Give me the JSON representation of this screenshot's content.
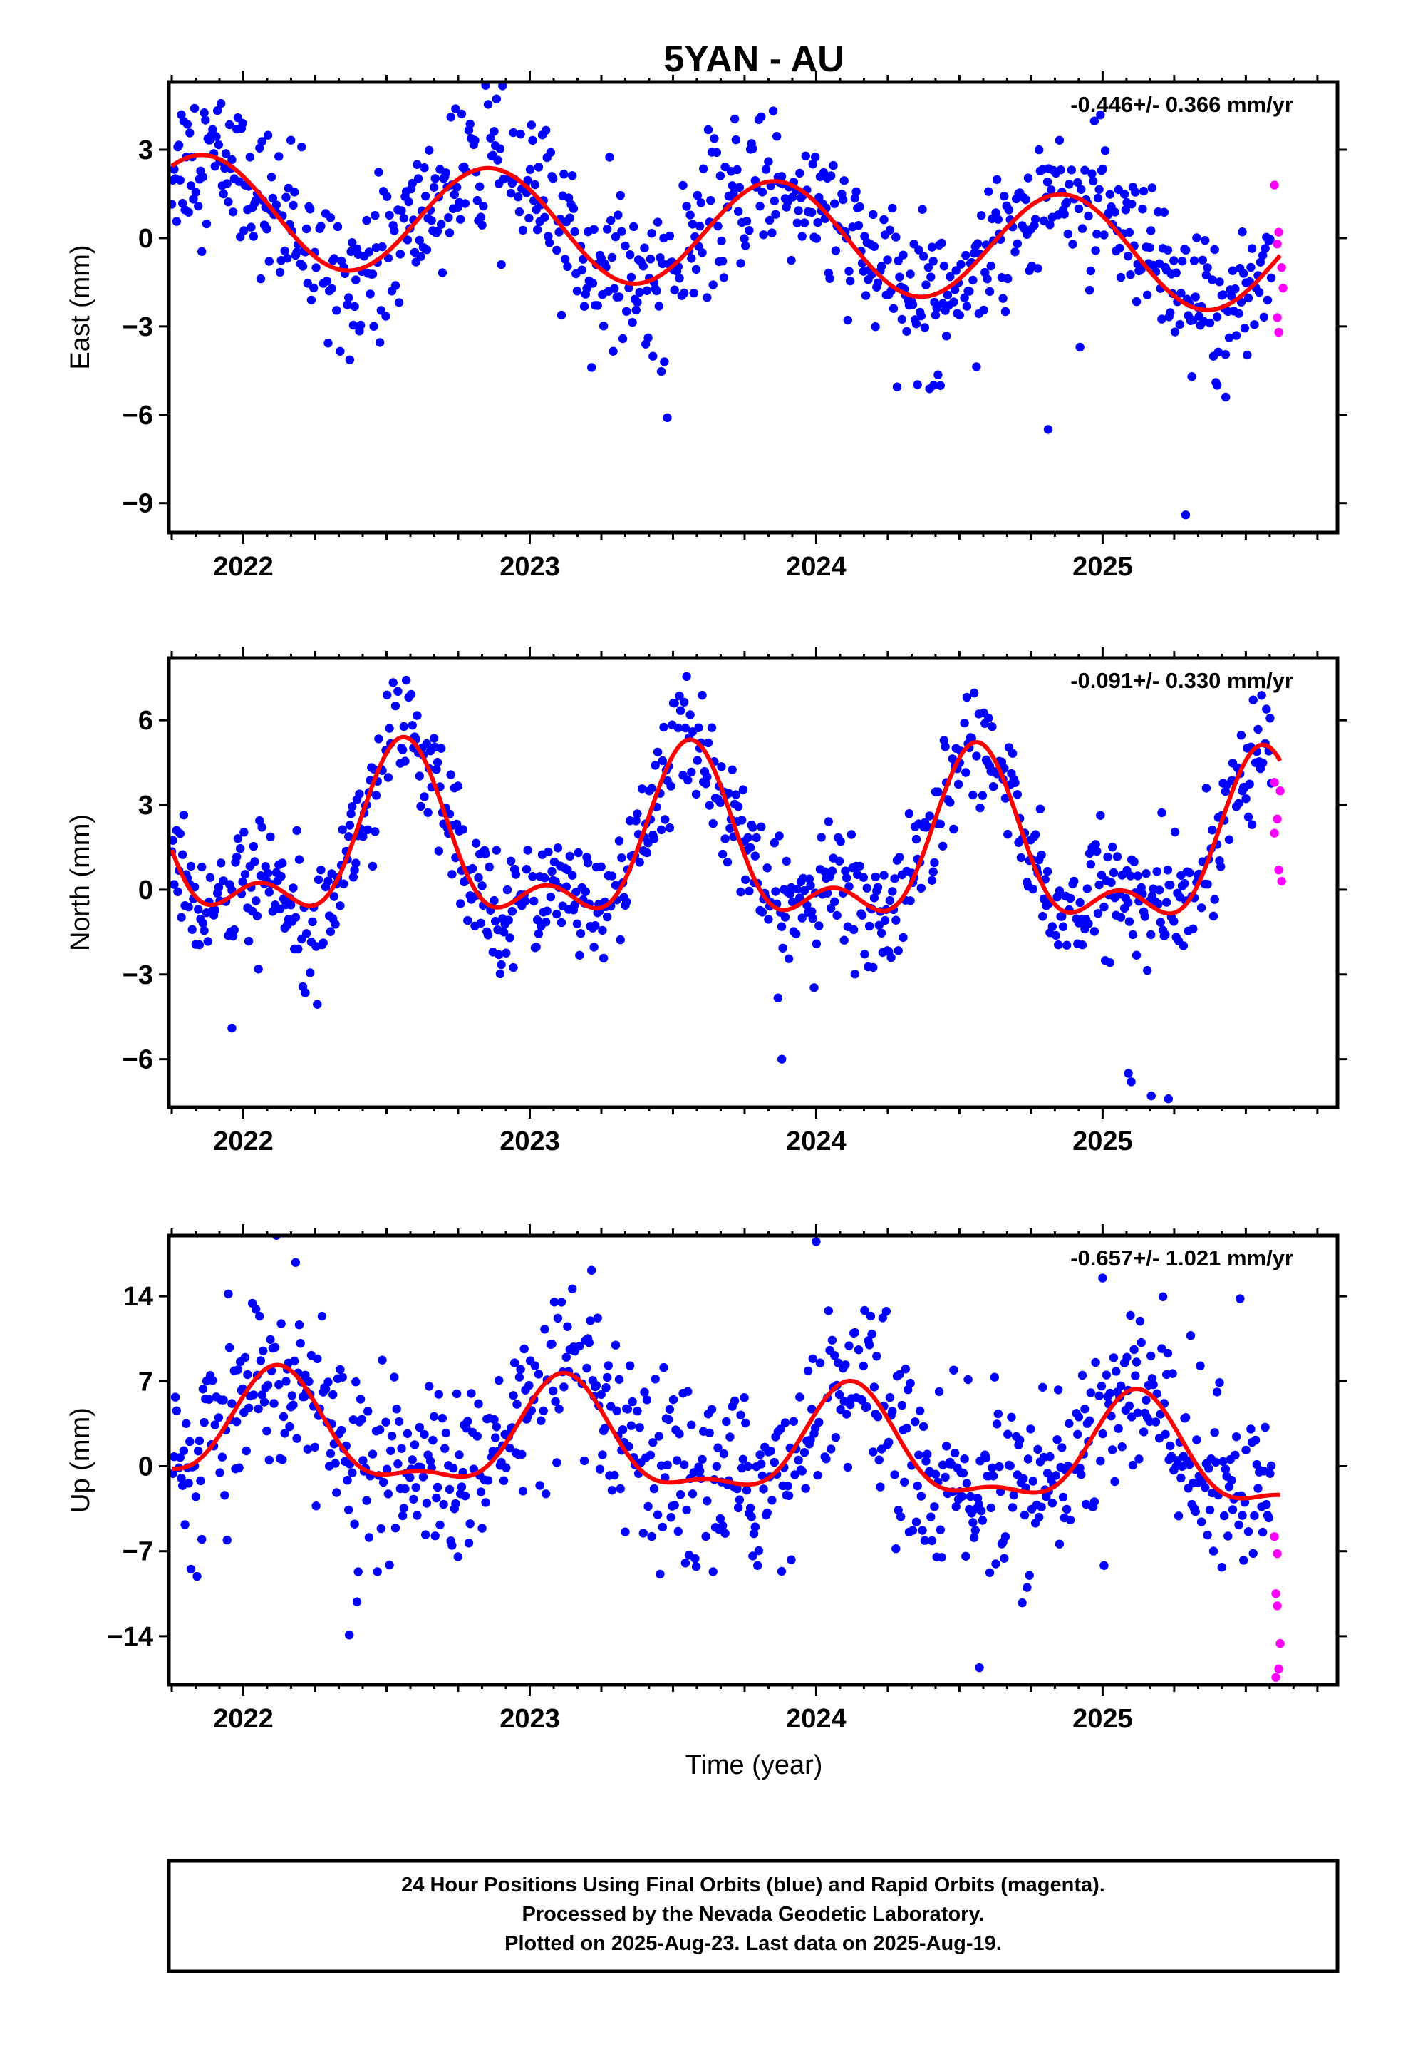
{
  "title": "5YAN - AU",
  "x_axis_label": "Time (year)",
  "colors": {
    "final": "#0000ff",
    "rapid": "#ff00ff",
    "model": "#ff0000",
    "frame": "#000000"
  },
  "footer": {
    "line1": "24 Hour Positions Using Final Orbits (blue) and Rapid Orbits (magenta).",
    "line2": "Processed by the Nevada Geodetic Laboratory.",
    "line3": "Plotted on 2025-Aug-23. Last data on 2025-Aug-19."
  },
  "chart_data": [
    {
      "type": "scatter",
      "component": "East",
      "ylabel": "East (mm)",
      "rate_label": "-0.446+/- 0.366 mm/yr",
      "xlim": [
        2021.74,
        2025.82
      ],
      "ylim": [
        -10.0,
        5.3
      ],
      "yticks": [
        3,
        0,
        -3,
        -6,
        -9
      ],
      "xticks": [
        2022,
        2023,
        2024,
        2025
      ],
      "model": {
        "trend_mm_per_yr": -0.446,
        "offset": 0.15,
        "annual_amp": 1.85,
        "annual_peak": 0.86,
        "semi_amp": 0.0,
        "semi_peak": 0.0
      },
      "scatter_sd": 1.25,
      "rapid_orbit_points": [
        [
          2025.6,
          1.8
        ],
        [
          2025.61,
          -0.2
        ],
        [
          2025.615,
          0.2
        ],
        [
          2025.625,
          -1.0
        ],
        [
          2025.63,
          -1.7
        ],
        [
          2025.61,
          -2.7
        ],
        [
          2025.615,
          -3.2
        ]
      ],
      "outliers": [
        [
          2023.48,
          -6.1
        ],
        [
          2024.41,
          -5.0
        ],
        [
          2024.81,
          -6.5
        ],
        [
          2025.29,
          -9.4
        ],
        [
          2025.4,
          -5.0
        ],
        [
          2025.43,
          -5.4
        ],
        [
          2023.47,
          -4.2
        ]
      ]
    },
    {
      "type": "scatter",
      "component": "North",
      "ylabel": "North (mm)",
      "rate_label": "-0.091+/- 0.330 mm/yr",
      "xlim": [
        2021.74,
        2025.82
      ],
      "ylim": [
        -7.7,
        8.2
      ],
      "yticks": [
        6,
        3,
        0,
        -3,
        -6
      ],
      "xticks": [
        2022,
        2023,
        2024,
        2025
      ],
      "model": {
        "trend_mm_per_yr": -0.091,
        "offset": 1.3,
        "annual_amp": 2.6,
        "annual_peak": 0.56,
        "semi_amp": 1.4,
        "semi_peak": 0.56
      },
      "scatter_sd": 1.05,
      "rapid_orbit_points": [
        [
          2025.6,
          3.8
        ],
        [
          2025.61,
          2.5
        ],
        [
          2025.62,
          3.5
        ],
        [
          2025.6,
          2.0
        ],
        [
          2025.615,
          0.7
        ],
        [
          2025.625,
          0.3
        ]
      ],
      "outliers": [
        [
          2025.09,
          -6.5
        ],
        [
          2025.1,
          -6.8
        ],
        [
          2025.17,
          -7.3
        ],
        [
          2025.23,
          -7.4
        ],
        [
          2023.88,
          -6.0
        ],
        [
          2021.96,
          -4.9
        ]
      ]
    },
    {
      "type": "scatter",
      "component": "Up",
      "ylabel": "Up (mm)",
      "rate_label": "-0.657+/- 1.021 mm/yr",
      "xlim": [
        2021.74,
        2025.82
      ],
      "ylim": [
        -18.0,
        19.0
      ],
      "yticks": [
        14,
        7,
        0,
        -7,
        -14
      ],
      "xticks": [
        2022,
        2023,
        2024,
        2025
      ],
      "model": {
        "trend_mm_per_yr": -0.657,
        "offset": 1.5,
        "annual_amp": 4.2,
        "annual_peak": 0.12,
        "semi_amp": 1.6,
        "semi_peak": 0.12
      },
      "scatter_sd": 3.6,
      "rapid_orbit_points": [
        [
          2025.6,
          -5.8
        ],
        [
          2025.61,
          -7.2
        ],
        [
          2025.605,
          -10.5
        ],
        [
          2025.61,
          -11.5
        ],
        [
          2025.62,
          -14.6
        ],
        [
          2025.615,
          -16.7
        ],
        [
          2025.605,
          -17.4
        ]
      ],
      "outliers": [
        [
          2024.0,
          18.5
        ],
        [
          2024.57,
          -16.6
        ],
        [
          2025.48,
          13.8
        ],
        [
          2022.37,
          -13.9
        ],
        [
          2025.0,
          15.5
        ]
      ]
    }
  ]
}
